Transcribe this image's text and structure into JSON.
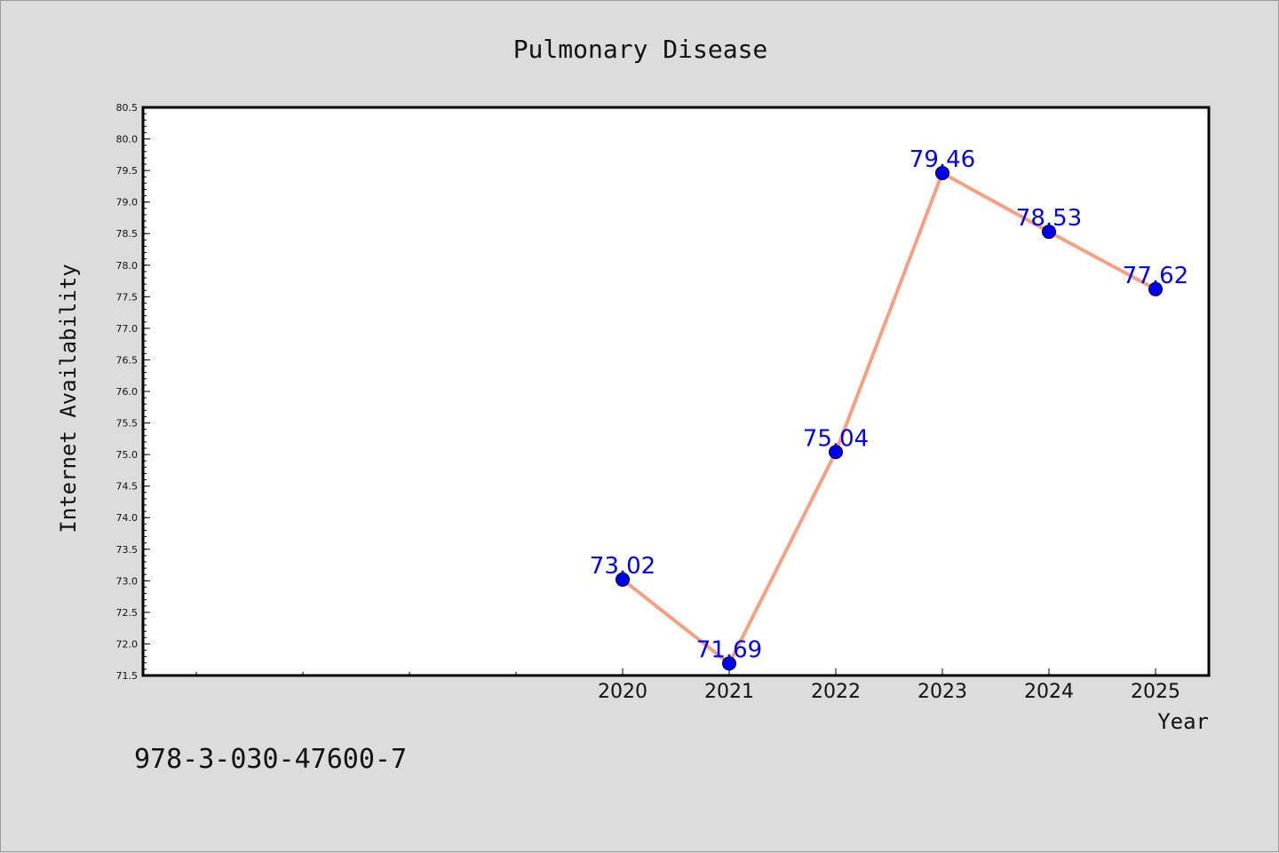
{
  "chart_data": {
    "type": "line",
    "title": "Pulmonary Disease",
    "xlabel": "Year",
    "ylabel": "Internet Availability",
    "x": [
      2020,
      2021,
      2022,
      2023,
      2024,
      2025
    ],
    "values": [
      73.02,
      71.69,
      75.04,
      79.46,
      78.53,
      77.62
    ],
    "data_labels": [
      "73.02",
      "71.69",
      "75.04",
      "79.46",
      "78.53",
      "77.62"
    ],
    "xticks": [
      "2020",
      "2021",
      "2022",
      "2023",
      "2024",
      "2025"
    ],
    "xlim": [
      2015.5,
      2025.5
    ],
    "ylim": [
      71.5,
      80.5
    ],
    "yticks": [
      "71.5",
      "72.0",
      "72.5",
      "73.0",
      "73.5",
      "74.0",
      "74.5",
      "75.0",
      "75.5",
      "76.0",
      "76.5",
      "77.0",
      "77.5",
      "78.0",
      "78.5",
      "79.0",
      "79.5",
      "80.0",
      "80.5"
    ],
    "grid": false,
    "line_color": "#f4a081",
    "marker_color": "#0000ee"
  },
  "footer_text": "978-3-030-47600-7"
}
